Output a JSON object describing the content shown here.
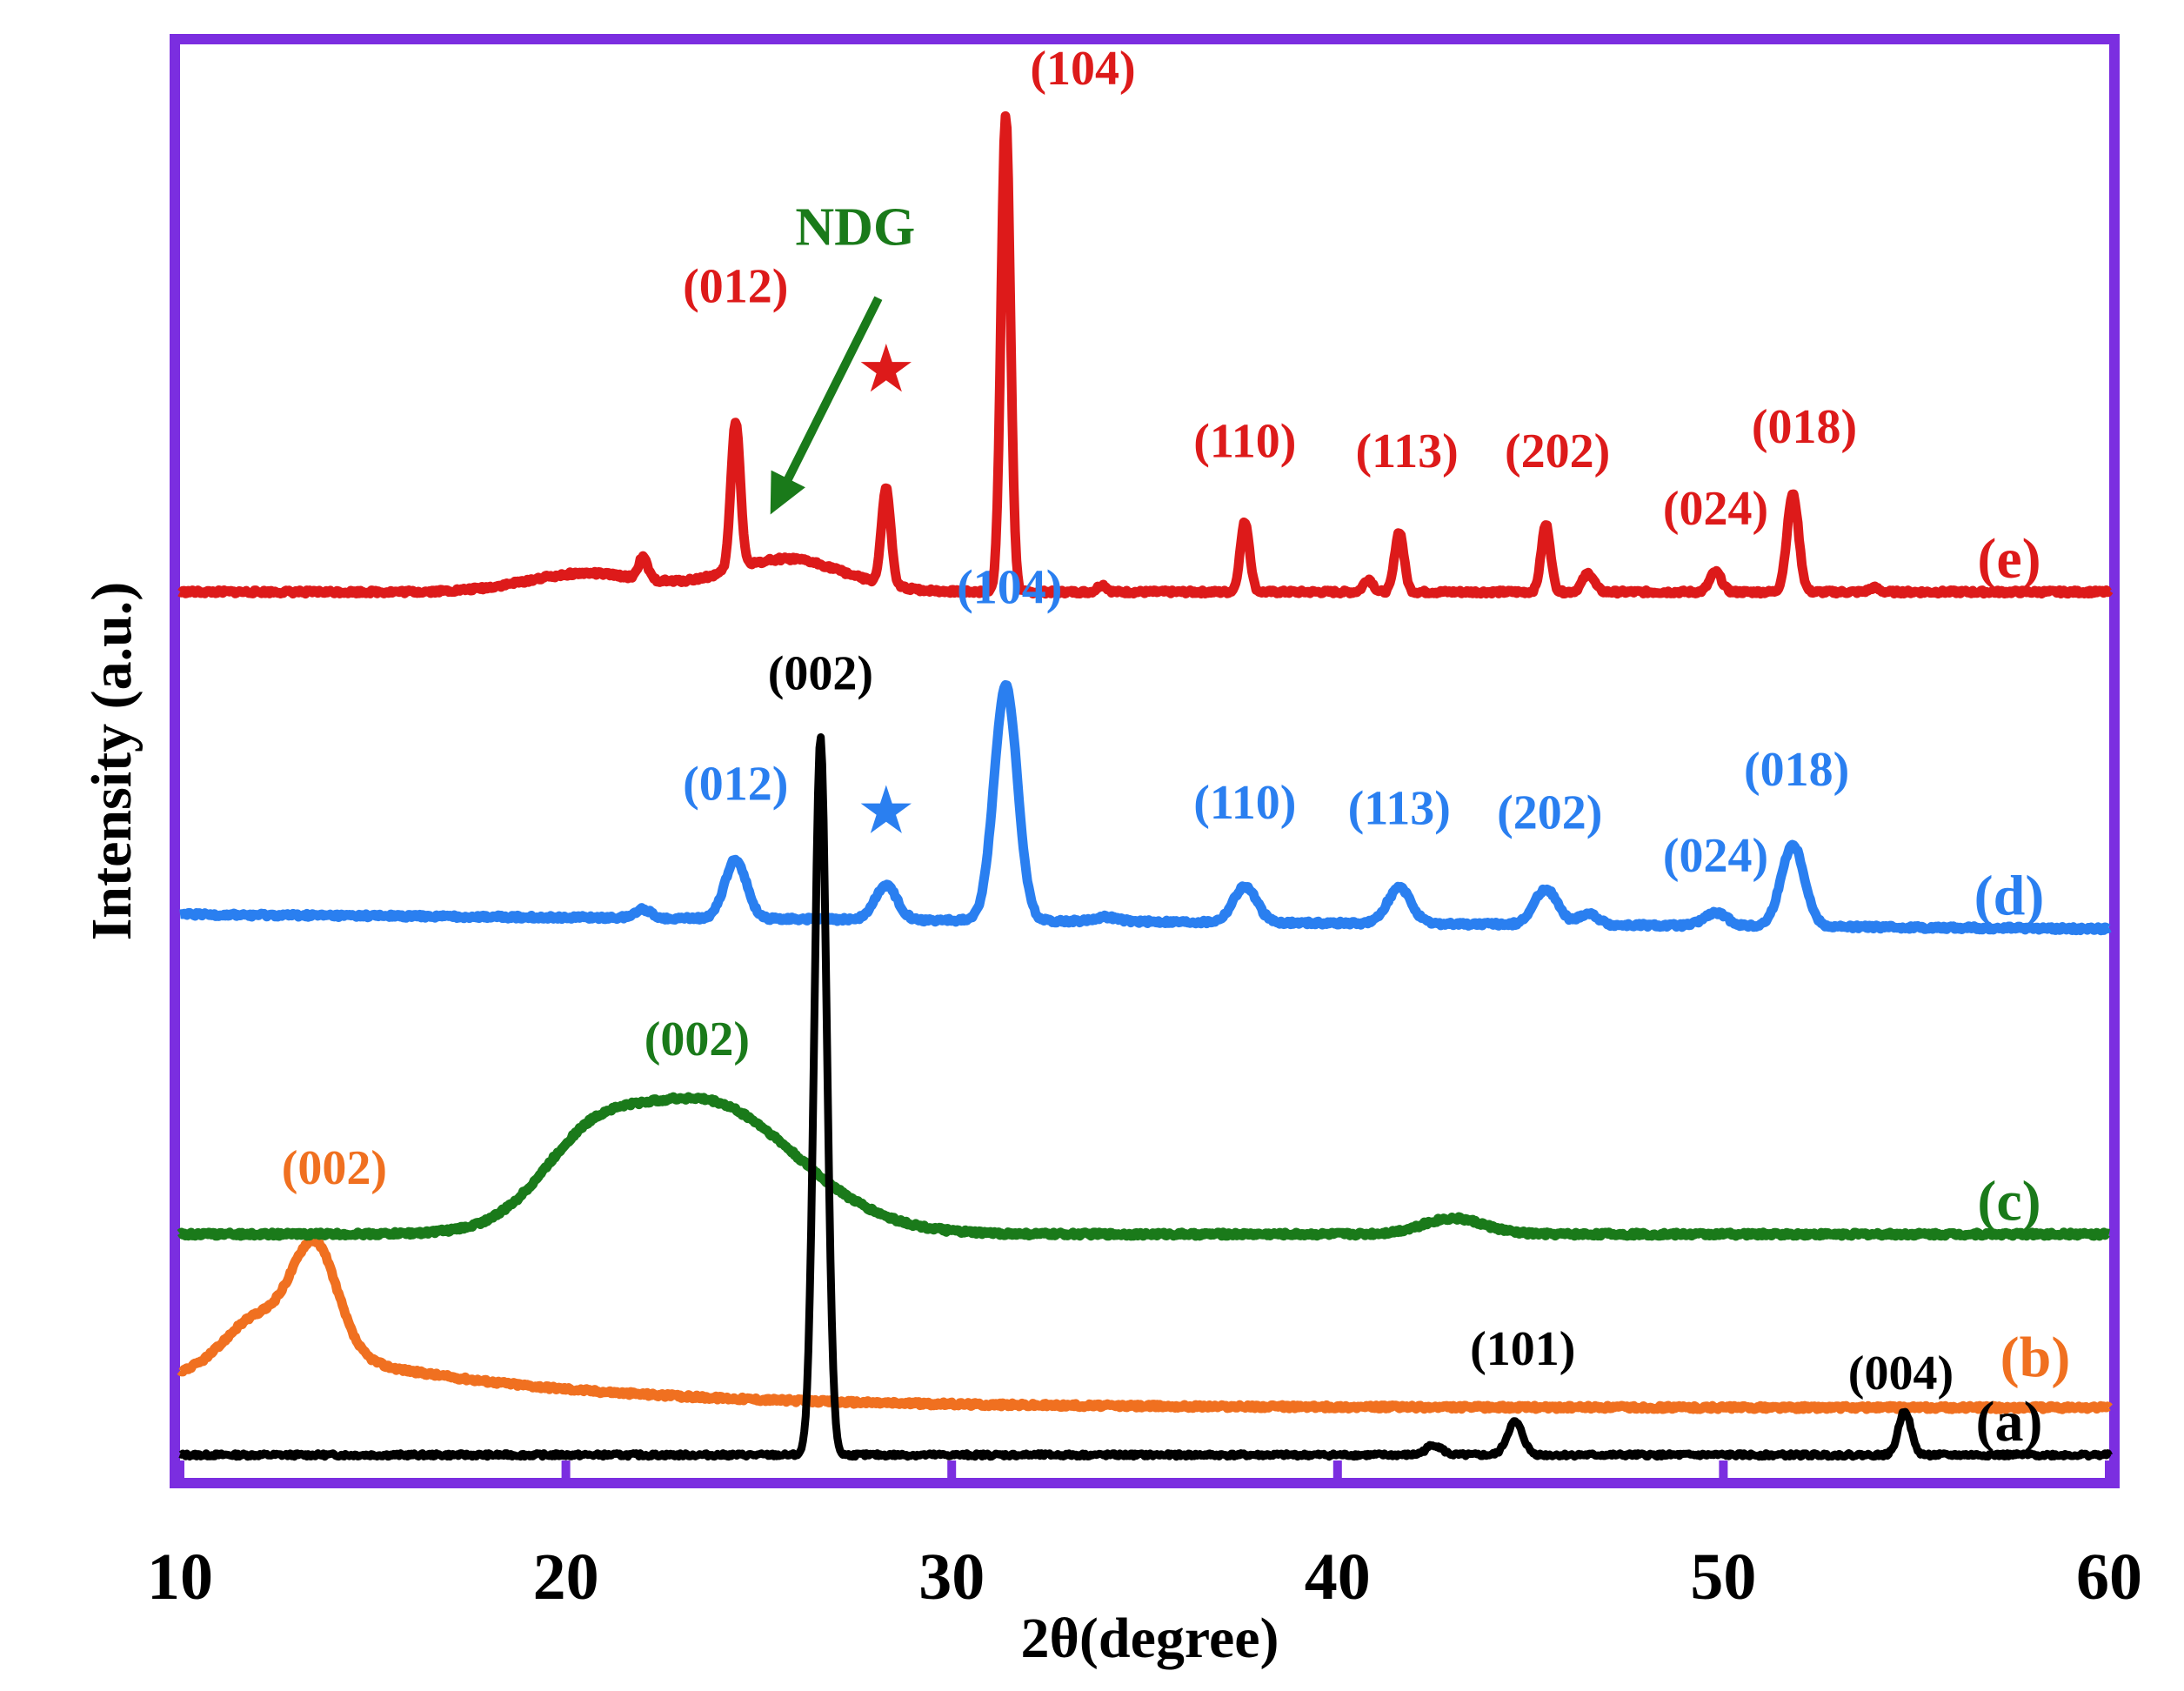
{
  "chart_data": {
    "type": "line",
    "title": "",
    "xlabel": "2θ(degree)",
    "ylabel": "Intensity (a.u.)",
    "xlim": [
      10,
      60
    ],
    "ylim": [
      0,
      100
    ],
    "xticks": [
      10,
      20,
      30,
      40,
      50,
      60
    ],
    "xtick_labels": [
      "10",
      "20",
      "30",
      "40",
      "50",
      "60"
    ],
    "grid": false,
    "frame_color": "#7b2ee0",
    "series": [
      {
        "name": "(a)",
        "label": "(a)",
        "color": "#000000",
        "baseline": 1.6,
        "tail": 1.6,
        "peaks": [
          [
            26.6,
            50.0,
            0.16
          ],
          [
            42.5,
            0.7,
            0.2
          ],
          [
            44.6,
            2.3,
            0.2
          ],
          [
            54.7,
            3.1,
            0.16
          ]
        ],
        "annotations": [
          {
            "text": "(002)",
            "x": 26.6,
            "y": 55.0
          },
          {
            "text": "(101)",
            "x": 44.8,
            "y": 7.9
          },
          {
            "text": "(004)",
            "x": 54.6,
            "y": 6.2
          }
        ]
      },
      {
        "name": "(b)",
        "label": "(b)",
        "color": "#f07020",
        "baseline": 7.6,
        "tail": 4.9,
        "peaks": [
          [
            13.5,
            8.1,
            0.6
          ],
          [
            12.0,
            3.2,
            0.8
          ]
        ],
        "edge_rise": true,
        "annotations": [
          {
            "text": "(002)",
            "x": 14.0,
            "y": 20.5
          }
        ]
      },
      {
        "name": "(c)",
        "label": "(c)",
        "color": "#1a7a1a",
        "baseline": 17.0,
        "tail": 17.0,
        "peaks": [
          [
            23.5,
            9.3,
            2.4
          ],
          [
            20.5,
            3.4,
            1.2
          ],
          [
            43.0,
            1.1,
            0.8
          ]
        ],
        "annotations": [
          {
            "text": "(002)",
            "x": 23.4,
            "y": 29.5
          }
        ]
      },
      {
        "name": "(d)",
        "label": "(d)",
        "color": "#2a7ff0",
        "baseline": 39.3,
        "tail": 38.3,
        "peaks": [
          [
            22.0,
            0.6,
            0.2
          ],
          [
            24.4,
            4.1,
            0.28
          ],
          [
            28.3,
            2.4,
            0.28
          ],
          [
            31.4,
            16.4,
            0.3
          ],
          [
            34.0,
            0.3,
            0.3
          ],
          [
            37.6,
            2.5,
            0.3
          ],
          [
            41.6,
            2.5,
            0.3
          ],
          [
            45.4,
            2.5,
            0.3
          ],
          [
            46.5,
            0.8,
            0.25
          ],
          [
            49.8,
            0.9,
            0.3
          ],
          [
            51.8,
            5.7,
            0.3
          ]
        ],
        "annotations": [
          {
            "text": "(012)",
            "x": 24.4,
            "y": 47.3
          },
          {
            "text": "(104)",
            "x": 31.5,
            "y": 61.0
          },
          {
            "text": "(110)",
            "x": 37.6,
            "y": 46.0
          },
          {
            "text": "(113)",
            "x": 41.6,
            "y": 45.6
          },
          {
            "text": "(202)",
            "x": 45.5,
            "y": 45.3
          },
          {
            "text": "(024)",
            "x": 49.8,
            "y": 42.3
          },
          {
            "text": "(018)",
            "x": 51.9,
            "y": 48.3
          }
        ],
        "marker": {
          "symbol": "★",
          "x": 28.3,
          "y": 45.0
        }
      },
      {
        "name": "(e)",
        "label": "(e)",
        "color": "#dd1a1a",
        "baseline": 61.8,
        "tail": 61.8,
        "peaks": [
          [
            20.5,
            1.3,
            1.5
          ],
          [
            22.0,
            1.5,
            0.12
          ],
          [
            24.4,
            10.3,
            0.12
          ],
          [
            25.7,
            2.3,
            1.5
          ],
          [
            28.3,
            6.7,
            0.12
          ],
          [
            31.4,
            33.3,
            0.12
          ],
          [
            33.9,
            0.5,
            0.12
          ],
          [
            37.6,
            4.9,
            0.12
          ],
          [
            40.8,
            0.9,
            0.12
          ],
          [
            41.6,
            4.2,
            0.12
          ],
          [
            45.4,
            4.7,
            0.12
          ],
          [
            46.5,
            1.3,
            0.15
          ],
          [
            49.8,
            1.4,
            0.15
          ],
          [
            51.8,
            6.8,
            0.15
          ],
          [
            53.9,
            0.3,
            0.12
          ]
        ],
        "annotations": [
          {
            "text": "(012)",
            "x": 24.4,
            "y": 82.0
          },
          {
            "text": "(104)",
            "x": 33.4,
            "y": 97.2
          },
          {
            "text": "(110)",
            "x": 37.6,
            "y": 71.2
          },
          {
            "text": "(113)",
            "x": 41.8,
            "y": 70.5
          },
          {
            "text": "(202)",
            "x": 45.7,
            "y": 70.5
          },
          {
            "text": "(024)",
            "x": 49.8,
            "y": 66.5
          },
          {
            "text": "(018)",
            "x": 52.1,
            "y": 72.2
          }
        ],
        "marker": {
          "symbol": "★",
          "x": 28.3,
          "y": 75.8
        }
      }
    ],
    "ndg_annotation": {
      "text": "NDG",
      "color": "#1a7a1a",
      "text_x": 27.5,
      "text_y": 86.0,
      "arrow_from": [
        28.1,
        82.3
      ],
      "arrow_to": [
        25.3,
        67.2
      ]
    }
  }
}
